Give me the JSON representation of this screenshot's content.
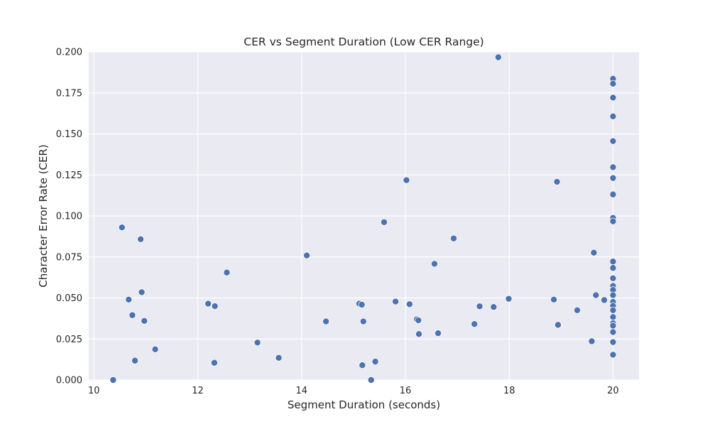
{
  "chart_data": {
    "type": "scatter",
    "title": "CER vs Segment Duration (Low CER Range)",
    "xlabel": "Segment Duration (seconds)",
    "ylabel": "Character Error Rate (CER)",
    "xlim": [
      9.9,
      20.5
    ],
    "ylim": [
      0,
      0.2
    ],
    "xticks": [
      10,
      12,
      14,
      16,
      18,
      20
    ],
    "xtick_labels": [
      "10",
      "12",
      "14",
      "16",
      "18",
      "20"
    ],
    "yticks": [
      0,
      0.025,
      0.05,
      0.075,
      0.1,
      0.125,
      0.15,
      0.175,
      0.2
    ],
    "ytick_labels": [
      "0.000",
      "0.025",
      "0.050",
      "0.075",
      "0.100",
      "0.125",
      "0.150",
      "0.175",
      "0.200"
    ],
    "grid": true,
    "legend": "none",
    "colors": {
      "background": "#eaeaf2",
      "grid": "#ffffff",
      "point": "#4c72b0",
      "point_edge": "#ffffff"
    },
    "points": [
      {
        "x": 10.37,
        "y": 0.0
      },
      {
        "x": 10.54,
        "y": 0.093
      },
      {
        "x": 10.67,
        "y": 0.049
      },
      {
        "x": 10.74,
        "y": 0.0395
      },
      {
        "x": 10.79,
        "y": 0.0118
      },
      {
        "x": 10.9,
        "y": 0.0858
      },
      {
        "x": 10.92,
        "y": 0.0535
      },
      {
        "x": 10.97,
        "y": 0.036
      },
      {
        "x": 11.18,
        "y": 0.0187
      },
      {
        "x": 12.2,
        "y": 0.0465
      },
      {
        "x": 12.32,
        "y": 0.0105
      },
      {
        "x": 12.33,
        "y": 0.045
      },
      {
        "x": 12.56,
        "y": 0.0655
      },
      {
        "x": 13.15,
        "y": 0.0228
      },
      {
        "x": 13.56,
        "y": 0.0135
      },
      {
        "x": 14.1,
        "y": 0.0759
      },
      {
        "x": 14.47,
        "y": 0.0357
      },
      {
        "x": 15.11,
        "y": 0.0465
      },
      {
        "x": 15.16,
        "y": 0.0459
      },
      {
        "x": 15.17,
        "y": 0.009
      },
      {
        "x": 15.19,
        "y": 0.0357
      },
      {
        "x": 15.34,
        "y": 0.0
      },
      {
        "x": 15.42,
        "y": 0.0112
      },
      {
        "x": 15.59,
        "y": 0.0962
      },
      {
        "x": 15.81,
        "y": 0.0478
      },
      {
        "x": 16.02,
        "y": 0.1218
      },
      {
        "x": 16.08,
        "y": 0.0462
      },
      {
        "x": 16.22,
        "y": 0.037
      },
      {
        "x": 16.25,
        "y": 0.0364
      },
      {
        "x": 16.26,
        "y": 0.028
      },
      {
        "x": 16.56,
        "y": 0.0708
      },
      {
        "x": 16.63,
        "y": 0.0285
      },
      {
        "x": 16.93,
        "y": 0.0863
      },
      {
        "x": 17.33,
        "y": 0.0341
      },
      {
        "x": 17.43,
        "y": 0.0449
      },
      {
        "x": 17.7,
        "y": 0.0445
      },
      {
        "x": 17.79,
        "y": 0.1967
      },
      {
        "x": 17.99,
        "y": 0.0495
      },
      {
        "x": 18.86,
        "y": 0.049
      },
      {
        "x": 18.92,
        "y": 0.1208
      },
      {
        "x": 18.94,
        "y": 0.0336
      },
      {
        "x": 19.31,
        "y": 0.0425
      },
      {
        "x": 19.59,
        "y": 0.0236
      },
      {
        "x": 19.63,
        "y": 0.0776
      },
      {
        "x": 19.67,
        "y": 0.0517
      },
      {
        "x": 19.83,
        "y": 0.0487
      },
      {
        "x": 20.0,
        "y": 0.1836
      },
      {
        "x": 20.0,
        "y": 0.1806
      },
      {
        "x": 20.0,
        "y": 0.1721
      },
      {
        "x": 20.0,
        "y": 0.1607
      },
      {
        "x": 20.0,
        "y": 0.1456
      },
      {
        "x": 20.0,
        "y": 0.1297
      },
      {
        "x": 20.0,
        "y": 0.1231
      },
      {
        "x": 20.0,
        "y": 0.1131
      },
      {
        "x": 20.0,
        "y": 0.0988
      },
      {
        "x": 20.0,
        "y": 0.0967
      },
      {
        "x": 20.0,
        "y": 0.0722
      },
      {
        "x": 20.0,
        "y": 0.0683
      },
      {
        "x": 20.0,
        "y": 0.062
      },
      {
        "x": 20.0,
        "y": 0.0573
      },
      {
        "x": 20.0,
        "y": 0.0549
      },
      {
        "x": 20.0,
        "y": 0.0517
      },
      {
        "x": 20.0,
        "y": 0.0476
      },
      {
        "x": 20.0,
        "y": 0.0452
      },
      {
        "x": 20.0,
        "y": 0.0425
      },
      {
        "x": 20.0,
        "y": 0.0384
      },
      {
        "x": 20.0,
        "y": 0.0346
      },
      {
        "x": 20.0,
        "y": 0.0331
      },
      {
        "x": 20.0,
        "y": 0.0292
      },
      {
        "x": 20.0,
        "y": 0.0231
      },
      {
        "x": 20.0,
        "y": 0.0154
      }
    ]
  }
}
